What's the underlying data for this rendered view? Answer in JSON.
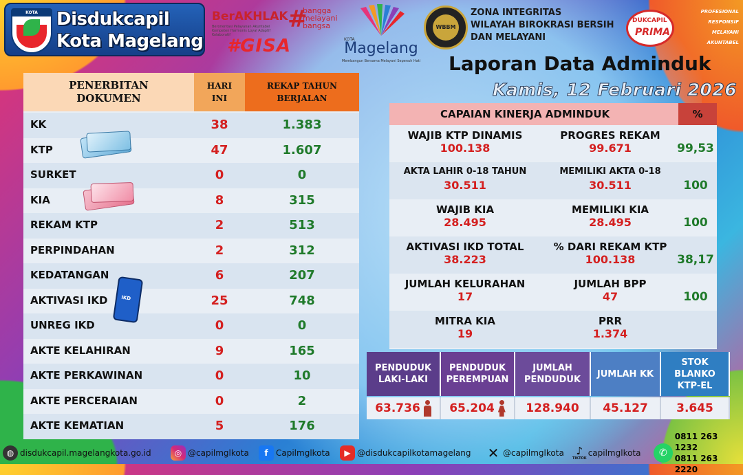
{
  "header": {
    "crest_label": "KOTA MAGELANG",
    "brand_line1": "Disdukcapil",
    "brand_line2": "Kota Magelang",
    "berakhlak": "BerAKHLAK",
    "berakhlak_sub": "Berorientasi Pelayanan Akuntabel Kompeten Harmonis Loyal Adaptif Kolaboratif",
    "bangga": "bangga melayani bangsa",
    "gisa": "#GISA",
    "kota_label": "KOTA",
    "magelang": "Magelang",
    "magelang_tag": "Membangun Bersama Melayani Sepenuh Hati",
    "zi_seal": "WBBM",
    "zi_line1": "ZONA INTEGRITAS",
    "zi_line2": "WILAYAH BIROKRASI BERSIH",
    "zi_line3": "DAN MELAYANI",
    "prima_1": "DUKCAPIL",
    "prima_2": "PRIMA",
    "prima_tags": [
      "PROFESIONAL",
      "RESPONSIF",
      "MELAYANI",
      "AKUNTABEL"
    ],
    "title": "Laporan Data Adminduk",
    "date": "Kamis, 12 Februari 2026"
  },
  "penerbitan": {
    "header_doc": "PENERBITAN DOKUMEN",
    "header_today": "HARI INI",
    "header_total": "REKAP TAHUN BERJALAN",
    "rows": [
      {
        "name": "KK",
        "today": "38",
        "total": "1.383"
      },
      {
        "name": "KTP",
        "today": "47",
        "total": "1.607"
      },
      {
        "name": "SURKET",
        "today": "0",
        "total": "0"
      },
      {
        "name": "KIA",
        "today": "8",
        "total": "315"
      },
      {
        "name": "REKAM KTP",
        "today": "2",
        "total": "513"
      },
      {
        "name": "PERPINDAHAN",
        "today": "2",
        "total": "312"
      },
      {
        "name": "KEDATANGAN",
        "today": "6",
        "total": "207"
      },
      {
        "name": "AKTIVASI IKD",
        "today": "25",
        "total": "748"
      },
      {
        "name": "UNREG IKD",
        "today": "0",
        "total": "0"
      },
      {
        "name": "AKTE KELAHIRAN",
        "today": "9",
        "total": "165"
      },
      {
        "name": "AKTE PERKAWINAN",
        "today": "0",
        "total": "10"
      },
      {
        "name": "AKTE PERCERAIAN",
        "today": "0",
        "total": "2"
      },
      {
        "name": "AKTE KEMATIAN",
        "today": "5",
        "total": "176"
      }
    ],
    "ikd_label": "IKD"
  },
  "capaian": {
    "header": "CAPAIAN KINERJA ADMINDUK",
    "pct_header": "%",
    "rows": [
      {
        "l1": "WAJIB KTP DINAMIS",
        "v1": "100.138",
        "l2": "PROGRES REKAM",
        "v2": "99.671",
        "pct": "99,53"
      },
      {
        "l1": "AKTA LAHIR 0-18 TAHUN",
        "v1": "30.511",
        "l2": "MEMILIKI AKTA 0-18",
        "v2": "30.511",
        "pct": "100"
      },
      {
        "l1": "WAJIB KIA",
        "v1": "28.495",
        "l2": "MEMILIKI KIA",
        "v2": "28.495",
        "pct": "100"
      },
      {
        "l1": "AKTIVASI IKD TOTAL",
        "v1": "38.223",
        "l2": "% DARI REKAM KTP",
        "v2": "100.138",
        "pct": "38,17"
      },
      {
        "l1": "JUMLAH KELURAHAN",
        "v1": "17",
        "l2": "JUMLAH BPP",
        "v2": "47",
        "pct": "100"
      },
      {
        "l1": "MITRA KIA",
        "v1": "19",
        "l2": "PRR",
        "v2": "1.374",
        "pct": ""
      }
    ]
  },
  "stats": [
    {
      "label": "PENDUDUK LAKI-LAKI",
      "value": "63.736",
      "color": "#5b3d8a"
    },
    {
      "label": "PENDUDUK PEREMPUAN",
      "value": "65.204",
      "color": "#6a3f93"
    },
    {
      "label": "JUMLAH PENDUDUK",
      "value": "128.940",
      "color": "#6c4b9a"
    },
    {
      "label": "JUMLAH KK",
      "value": "45.127",
      "color": "#4d7fc4"
    },
    {
      "label": "STOK BLANKO KTP-EL",
      "value": "3.645",
      "color": "#2f7ec2"
    }
  ],
  "footer": {
    "web": "disdukcapil.magelangkota.go.id",
    "instagram": "@capilmglkota",
    "facebook": "Capilmglkota",
    "youtube": "@disdukcapilkotamagelang",
    "x": "@capilmglkota",
    "tiktok_label": "TIKTOK",
    "tiktok": "capilmglkota",
    "phone1": "0811 263 1232",
    "phone2": "0811 263 2220"
  }
}
